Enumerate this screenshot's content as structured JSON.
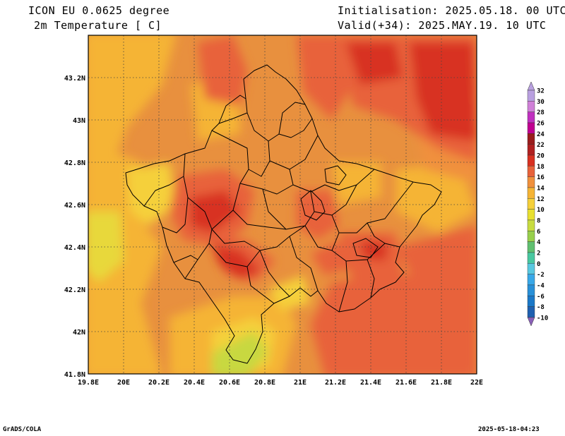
{
  "header": {
    "model": "ICON EU 0.0625 degree",
    "variable": "2m Temperature [ C]",
    "init": "Initialisation: 2025.05.18. 00 UTC",
    "valid": "Valid(+34): 2025.MAY.19. 10 UTC"
  },
  "footer": {
    "left": "GrADS/COLA",
    "right": "2025-05-18-04:23"
  },
  "map": {
    "lon_ticks": [
      "19.8E",
      "20E",
      "20.2E",
      "20.4E",
      "20.6E",
      "20.8E",
      "21E",
      "21.2E",
      "21.4E",
      "21.6E",
      "21.8E",
      "22E"
    ],
    "lat_ticks": [
      "41.8N",
      "42N",
      "42.2N",
      "42.4N",
      "42.6N",
      "42.8N",
      "43N",
      "43.2N"
    ],
    "lon_range": [
      19.8,
      22.0
    ],
    "lat_range": [
      41.8,
      43.4
    ],
    "grid": true
  },
  "colorbar": {
    "labels": [
      "32",
      "30",
      "28",
      "26",
      "24",
      "22",
      "20",
      "18",
      "16",
      "14",
      "12",
      "10",
      "8",
      "6",
      "4",
      "2",
      "0",
      "-2",
      "-4",
      "-6",
      "-8",
      "-10"
    ],
    "colors": [
      "#b9a0e0",
      "#d080d8",
      "#c030c0",
      "#c00090",
      "#9a1c1c",
      "#b02020",
      "#d83020",
      "#e8623a",
      "#f0903c",
      "#f5b435",
      "#f5d03a",
      "#e8e030",
      "#c8dc40",
      "#98d04c",
      "#60c070",
      "#48c8a0",
      "#58c8e0",
      "#38a8e8",
      "#2890d8",
      "#1a78c8",
      "#1e60b0",
      "#8a60b8"
    ]
  }
}
